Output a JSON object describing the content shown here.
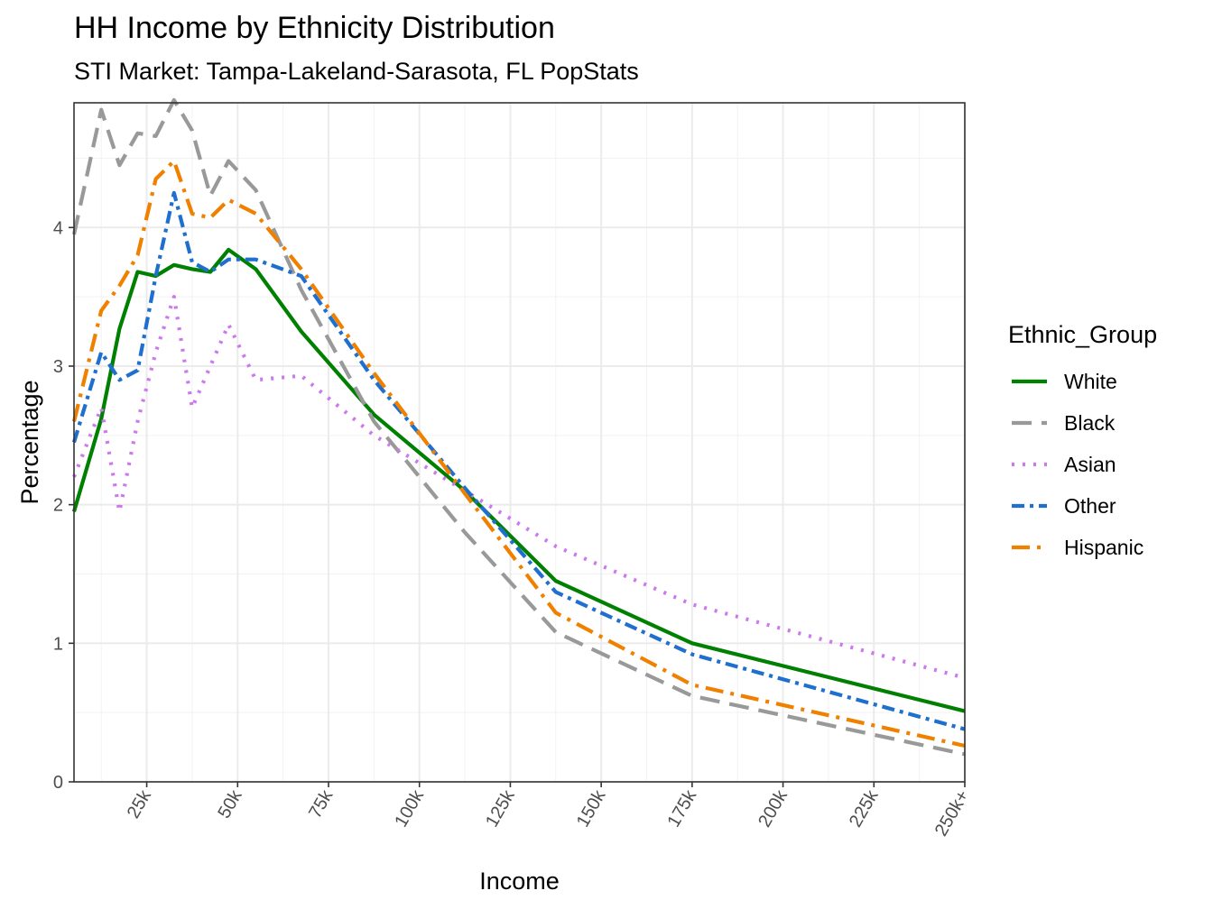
{
  "chart_data": {
    "type": "line",
    "title": "HH Income by Ethnicity Distribution",
    "subtitle": "STI Market: Tampa-Lakeland-Sarasota, FL PopStats",
    "xlabel": "Income",
    "ylabel": "Percentage",
    "xlim": [
      5,
      250
    ],
    "ylim": [
      0,
      4.9
    ],
    "x_ticks": [
      {
        "value": 25,
        "label": "25k"
      },
      {
        "value": 50,
        "label": "50k"
      },
      {
        "value": 75,
        "label": "75k"
      },
      {
        "value": 100,
        "label": "100k"
      },
      {
        "value": 125,
        "label": "125k"
      },
      {
        "value": 150,
        "label": "150k"
      },
      {
        "value": 175,
        "label": "175k"
      },
      {
        "value": 200,
        "label": "200k"
      },
      {
        "value": 225,
        "label": "225k"
      },
      {
        "value": 250,
        "label": "250k+"
      }
    ],
    "y_ticks": [
      {
        "value": 0,
        "label": "0"
      },
      {
        "value": 1,
        "label": "1"
      },
      {
        "value": 2,
        "label": "2"
      },
      {
        "value": 3,
        "label": "3"
      },
      {
        "value": 4,
        "label": "4"
      }
    ],
    "grid": true,
    "legend": {
      "title": "Ethnic_Group",
      "position": "right"
    },
    "series": [
      {
        "name": "White",
        "color": "#008000",
        "dash": "solid",
        "x": [
          5,
          12.5,
          17.5,
          22.5,
          27.5,
          32.5,
          37.5,
          42.5,
          47.5,
          55,
          67.5,
          87.5,
          112.5,
          137.5,
          175,
          250
        ],
        "y": [
          1.95,
          2.62,
          3.27,
          3.68,
          3.65,
          3.73,
          3.7,
          3.68,
          3.84,
          3.7,
          3.25,
          2.65,
          2.1,
          1.45,
          1.0,
          0.51
        ]
      },
      {
        "name": "Black",
        "color": "#999999",
        "dash": "long-dash",
        "x": [
          5,
          12.5,
          17.5,
          22.5,
          27.5,
          32.5,
          37.5,
          42.5,
          47.5,
          55,
          67.5,
          87.5,
          112.5,
          137.5,
          175,
          250
        ],
        "y": [
          3.95,
          4.85,
          4.45,
          4.68,
          4.66,
          4.92,
          4.7,
          4.23,
          4.48,
          4.27,
          3.55,
          2.6,
          1.8,
          1.08,
          0.62,
          0.2
        ]
      },
      {
        "name": "Asian",
        "color": "#cc79ee",
        "dash": "dotted",
        "x": [
          5,
          12.5,
          17.5,
          22.5,
          27.5,
          32.5,
          37.5,
          42.5,
          47.5,
          55,
          67.5,
          87.5,
          112.5,
          137.5,
          175,
          250
        ],
        "y": [
          2.2,
          2.7,
          1.95,
          2.6,
          3.1,
          3.5,
          2.7,
          3.0,
          3.3,
          2.9,
          2.93,
          2.5,
          2.1,
          1.7,
          1.28,
          0.75
        ]
      },
      {
        "name": "Other",
        "color": "#1f6fcf",
        "dash": "dash-dot",
        "x": [
          5,
          12.5,
          17.5,
          22.5,
          27.5,
          32.5,
          37.5,
          42.5,
          47.5,
          55,
          67.5,
          87.5,
          112.5,
          137.5,
          175,
          250
        ],
        "y": [
          2.45,
          3.1,
          2.9,
          2.97,
          3.65,
          4.25,
          3.75,
          3.68,
          3.77,
          3.77,
          3.65,
          2.9,
          2.12,
          1.37,
          0.92,
          0.38
        ]
      },
      {
        "name": "Hispanic",
        "color": "#f08000",
        "dash": "long-dash-dot",
        "x": [
          5,
          12.5,
          17.5,
          22.5,
          27.5,
          32.5,
          37.5,
          42.5,
          47.5,
          55,
          67.5,
          87.5,
          112.5,
          137.5,
          175,
          250
        ],
        "y": [
          2.6,
          3.4,
          3.58,
          3.8,
          4.35,
          4.48,
          4.1,
          4.07,
          4.2,
          4.1,
          3.7,
          2.95,
          2.08,
          1.22,
          0.7,
          0.26
        ]
      }
    ]
  }
}
